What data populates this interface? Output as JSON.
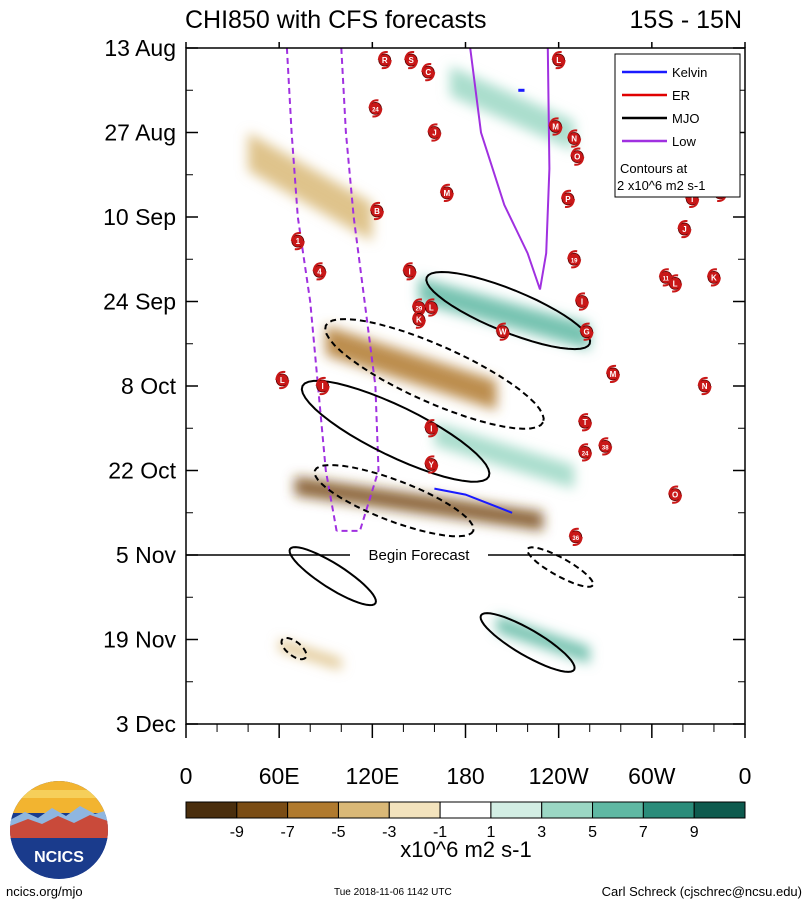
{
  "chart_data": {
    "type": "heatmap",
    "title": "CHI850 with CFS forecasts",
    "region": "15S - 15N",
    "x_ticks": [
      "0",
      "60E",
      "120E",
      "180",
      "120W",
      "60W",
      "0"
    ],
    "x_range_deg_east": [
      0,
      360
    ],
    "y_ticks": [
      "13 Aug",
      "27 Aug",
      "10 Sep",
      "24 Sep",
      "8 Oct",
      "22 Oct",
      "5 Nov",
      "19 Nov",
      "3 Dec"
    ],
    "y_range": [
      "2018-08-13",
      "2018-12-03"
    ],
    "forecast_start": "2018-11-05",
    "forecast_label": "Begin Forecast",
    "legend": {
      "placement": "top-right",
      "entries": [
        {
          "name": "Kelvin",
          "color": "#1a1aff"
        },
        {
          "name": "ER",
          "color": "#e00000"
        },
        {
          "name": "MJO",
          "color": "#000000"
        },
        {
          "name": "Low",
          "color": "#a030e0"
        }
      ],
      "note_line1": "Contours at",
      "note_line2": "2 x10^6 m2 s-1"
    },
    "colorbar": {
      "labels": [
        "-9",
        "-7",
        "-5",
        "-3",
        "-1",
        "1",
        "3",
        "5",
        "7",
        "9"
      ],
      "colors": [
        "#4a2e0d",
        "#7a4c14",
        "#b07a2e",
        "#d9b877",
        "#f3e3bd",
        "#ffffff",
        "#d3eee4",
        "#9bd7c4",
        "#5fb8a3",
        "#2a8c7a",
        "#0d5a4e"
      ],
      "units": "x10^6 m2 s-1"
    },
    "anomaly_bands": [
      {
        "lon": [
          70,
          230
        ],
        "start": "2018-10-23",
        "end": "2018-11-01",
        "value": -6
      },
      {
        "lon": [
          160,
          250
        ],
        "start": "2018-10-14",
        "end": "2018-10-25",
        "value": 3
      },
      {
        "lon": [
          90,
          200
        ],
        "start": "2018-09-28",
        "end": "2018-10-12",
        "value": -4
      },
      {
        "lon": [
          150,
          260
        ],
        "start": "2018-09-20",
        "end": "2018-10-02",
        "value": 5
      },
      {
        "lon": [
          40,
          120
        ],
        "start": "2018-08-27",
        "end": "2018-09-14",
        "value": -3
      },
      {
        "lon": [
          170,
          250
        ],
        "start": "2018-08-16",
        "end": "2018-08-30",
        "value": 3
      },
      {
        "lon": [
          200,
          260
        ],
        "start": "2018-11-15",
        "end": "2018-11-23",
        "value": 5
      },
      {
        "lon": [
          60,
          100
        ],
        "start": "2018-11-19",
        "end": "2018-11-24",
        "value": -3
      }
    ],
    "mjo_contours": [
      {
        "sign": "positive",
        "lon": [
          155,
          260
        ],
        "start": "2018-09-20",
        "end": "2018-10-01"
      },
      {
        "sign": "negative",
        "lon": [
          90,
          230
        ],
        "start": "2018-09-28",
        "end": "2018-10-14"
      },
      {
        "sign": "positive",
        "lon": [
          75,
          195
        ],
        "start": "2018-10-08",
        "end": "2018-10-23"
      },
      {
        "sign": "negative",
        "lon": [
          83,
          185
        ],
        "start": "2018-10-22",
        "end": "2018-11-01"
      },
      {
        "sign": "positive",
        "lon": [
          67,
          122
        ],
        "start": "2018-11-04",
        "end": "2018-11-13"
      },
      {
        "sign": "negative",
        "lon": [
          220,
          262
        ],
        "start": "2018-11-04",
        "end": "2018-11-10"
      },
      {
        "sign": "positive",
        "lon": [
          190,
          250
        ],
        "start": "2018-11-15",
        "end": "2018-11-24"
      },
      {
        "sign": "negative",
        "lon": [
          62,
          77
        ],
        "start": "2018-11-19",
        "end": "2018-11-22"
      }
    ],
    "storms": [
      {
        "label": "R",
        "lon": 128,
        "date": "2018-08-15"
      },
      {
        "label": "S",
        "lon": 145,
        "date": "2018-08-15"
      },
      {
        "label": "C",
        "lon": 156,
        "date": "2018-08-17"
      },
      {
        "label": "L",
        "lon": 240,
        "date": "2018-08-15"
      },
      {
        "label": "24",
        "lon": 122,
        "date": "2018-08-23"
      },
      {
        "label": "J",
        "lon": 160,
        "date": "2018-08-27"
      },
      {
        "label": "M",
        "lon": 238,
        "date": "2018-08-26"
      },
      {
        "label": "N",
        "lon": 250,
        "date": "2018-08-28"
      },
      {
        "label": "O",
        "lon": 252,
        "date": "2018-08-31"
      },
      {
        "label": "M",
        "lon": 168,
        "date": "2018-09-06"
      },
      {
        "label": "P",
        "lon": 246,
        "date": "2018-09-07"
      },
      {
        "label": "B",
        "lon": 123,
        "date": "2018-09-09"
      },
      {
        "label": "I",
        "lon": 326,
        "date": "2018-09-07"
      },
      {
        "label": "H",
        "lon": 344,
        "date": "2018-09-06"
      },
      {
        "label": "J",
        "lon": 321,
        "date": "2018-09-12"
      },
      {
        "label": "1",
        "lon": 72,
        "date": "2018-09-14"
      },
      {
        "label": "4",
        "lon": 86,
        "date": "2018-09-19"
      },
      {
        "label": "I",
        "lon": 144,
        "date": "2018-09-19"
      },
      {
        "label": "19",
        "lon": 250,
        "date": "2018-09-17"
      },
      {
        "label": "11",
        "lon": 309,
        "date": "2018-09-20"
      },
      {
        "label": "L",
        "lon": 315,
        "date": "2018-09-21"
      },
      {
        "label": "K",
        "lon": 340,
        "date": "2018-09-20"
      },
      {
        "label": "29",
        "lon": 150,
        "date": "2018-09-25"
      },
      {
        "label": "L",
        "lon": 158,
        "date": "2018-09-25"
      },
      {
        "label": "K",
        "lon": 150,
        "date": "2018-09-27"
      },
      {
        "label": "I",
        "lon": 255,
        "date": "2018-09-24"
      },
      {
        "label": "W",
        "lon": 204,
        "date": "2018-09-29"
      },
      {
        "label": "G",
        "lon": 258,
        "date": "2018-09-29"
      },
      {
        "label": "L",
        "lon": 62,
        "date": "2018-10-07"
      },
      {
        "label": "I",
        "lon": 88,
        "date": "2018-10-08"
      },
      {
        "label": "M",
        "lon": 275,
        "date": "2018-10-06"
      },
      {
        "label": "N",
        "lon": 334,
        "date": "2018-10-08"
      },
      {
        "label": "I",
        "lon": 158,
        "date": "2018-10-15"
      },
      {
        "label": "T",
        "lon": 257,
        "date": "2018-10-14"
      },
      {
        "label": "24",
        "lon": 257,
        "date": "2018-10-19"
      },
      {
        "label": "38",
        "lon": 270,
        "date": "2018-10-18"
      },
      {
        "label": "Y",
        "lon": 158,
        "date": "2018-10-21"
      },
      {
        "label": "O",
        "lon": 315,
        "date": "2018-10-26"
      },
      {
        "label": "36",
        "lon": 251,
        "date": "2018-11-02"
      }
    ]
  },
  "footer": {
    "left": "ncics.org/mjo",
    "middle": "Tue 2018-11-06 1142 UTC",
    "right": "Carl Schreck (cjschrec@ncsu.edu)"
  },
  "logo": {
    "text": "NCICS"
  }
}
